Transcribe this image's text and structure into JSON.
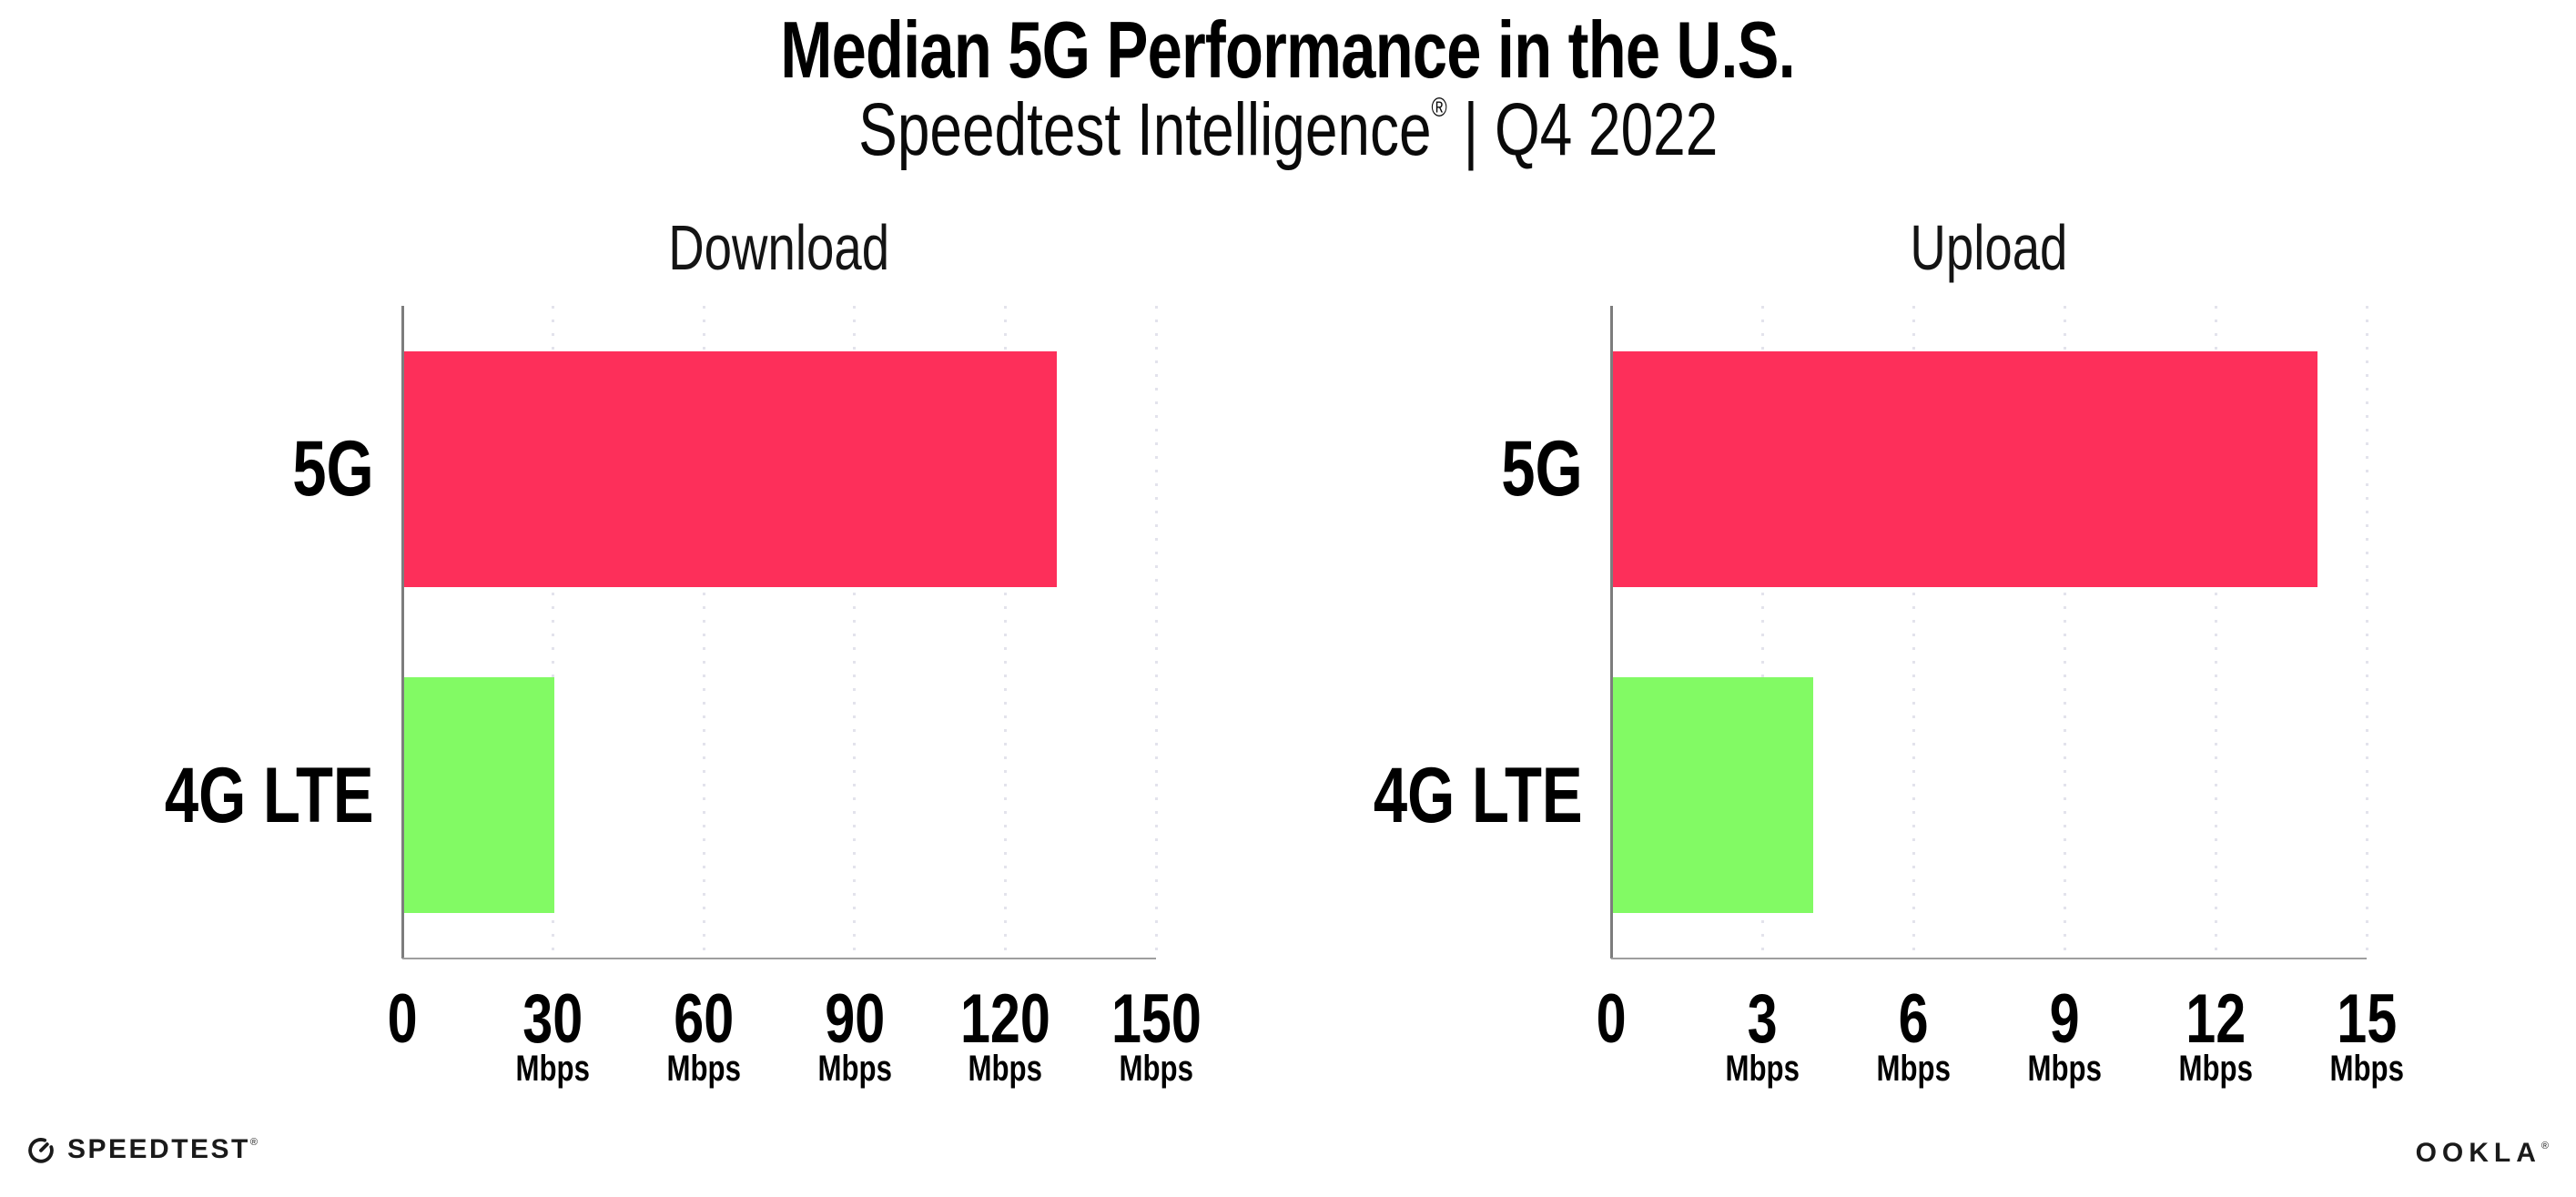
{
  "title": "Median 5G Performance in the U.S.",
  "subtitle": {
    "brand": "Speedtest Intelligence",
    "registered": "®",
    "rest": " | Q4 2022"
  },
  "colors": {
    "bar_5g": "#FD2F5A",
    "bar_4g_lte": "#82FA64",
    "gridline": "#E3E3EC",
    "y_axis": "#7D7D7D",
    "x_axis": "#9E9E9E",
    "text": "#000000"
  },
  "chart_data": [
    {
      "type": "bar",
      "orientation": "horizontal",
      "title": "Download",
      "categories": [
        "5G",
        "4G LTE"
      ],
      "values": [
        130,
        30
      ],
      "unit": "Mbps",
      "xlim": [
        0,
        150
      ],
      "xticks": [
        0,
        30,
        60,
        90,
        120,
        150
      ],
      "bar_colors": [
        "#FD2F5A",
        "#82FA64"
      ],
      "grid": true,
      "legend": "none"
    },
    {
      "type": "bar",
      "orientation": "horizontal",
      "title": "Upload",
      "categories": [
        "5G",
        "4G LTE"
      ],
      "values": [
        14,
        4
      ],
      "unit": "Mbps",
      "xlim": [
        0,
        15
      ],
      "xticks": [
        0,
        3,
        6,
        9,
        12,
        15
      ],
      "bar_colors": [
        "#FD2F5A",
        "#82FA64"
      ],
      "grid": true,
      "legend": "none"
    }
  ],
  "footer": {
    "speedtest_label": "SPEEDTEST",
    "speedtest_mark": "®",
    "ookla_label": "OOKLA",
    "ookla_mark": "®"
  }
}
